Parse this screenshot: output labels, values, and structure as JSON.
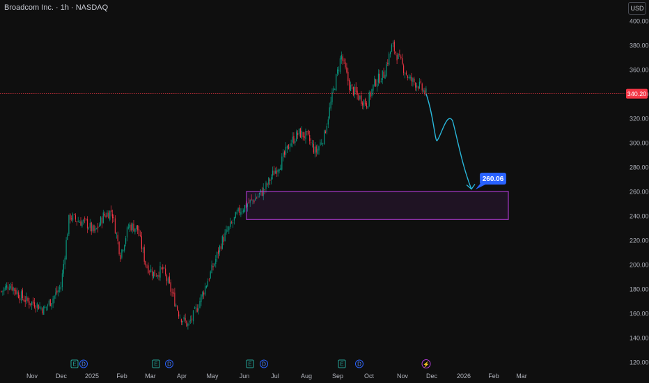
{
  "header": {
    "title": "Broadcom Inc. · 1h · NASDAQ",
    "currency_button": "USD"
  },
  "price_line": {
    "value": 340.2,
    "label": "340.20",
    "color": "#f23645"
  },
  "target": {
    "value": 260.06,
    "label": "260.06",
    "color": "#2962ff"
  },
  "zone": {
    "top": 260.06,
    "bottom": 237,
    "start": "Jun",
    "end": "Mar",
    "color": "#b23bd6"
  },
  "event_markers": [
    {
      "month": "Dec",
      "badges": [
        "E",
        "D"
      ]
    },
    {
      "month": "Mar",
      "badges": [
        "E",
        "D"
      ]
    },
    {
      "month": "Jun",
      "badges": [
        "E",
        "D"
      ]
    },
    {
      "month": "Sep",
      "badges": [
        "E",
        "D"
      ]
    },
    {
      "month": "Nov",
      "badges": [
        "⚡"
      ]
    }
  ],
  "chart_data": {
    "type": "candlestick",
    "y_ticks": [
      120,
      140,
      160,
      180,
      200,
      220,
      240,
      260,
      280,
      300,
      320,
      340,
      360,
      380,
      400
    ],
    "y_tick_labels": [
      "120.00",
      "140.00",
      "160.00",
      "180.00",
      "200.00",
      "220.00",
      "240.00",
      "260.00",
      "280.00",
      "300.00",
      "320.00",
      "340.00",
      "360.00",
      "380.00",
      "400.00"
    ],
    "ylim": [
      114,
      410
    ],
    "x_ticks": [
      "Nov",
      "Dec",
      "2025",
      "Feb",
      "Mar",
      "Apr",
      "May",
      "Jun",
      "Jul",
      "Aug",
      "Sep",
      "Oct",
      "Nov",
      "Dec",
      "2026",
      "Feb",
      "Mar"
    ],
    "colors": {
      "up": "#089981",
      "down": "#f23645",
      "projection": "#29b6d9"
    },
    "price_path": [
      [
        "Nov",
        178
      ],
      [
        "Nov",
        184
      ],
      [
        "Nov",
        176
      ],
      [
        "Nov",
        170
      ],
      [
        "Dec",
        168
      ],
      [
        "Dec",
        163
      ],
      [
        "Dec",
        172
      ],
      [
        "Dec",
        182
      ],
      [
        "Dec",
        240
      ],
      [
        "Dec",
        236
      ],
      [
        "2025",
        234
      ],
      [
        "2025",
        226
      ],
      [
        "2025",
        240
      ],
      [
        "Feb",
        244
      ],
      [
        "Feb",
        208
      ],
      [
        "Feb",
        232
      ],
      [
        "Feb",
        230
      ],
      [
        "Mar",
        200
      ],
      [
        "Mar",
        192
      ],
      [
        "Mar",
        196
      ],
      [
        "Apr",
        178
      ],
      [
        "Apr",
        158
      ],
      [
        "Apr",
        150
      ],
      [
        "Apr",
        164
      ],
      [
        "Apr",
        182
      ],
      [
        "May",
        200
      ],
      [
        "May",
        220
      ],
      [
        "May",
        232
      ],
      [
        "Jun",
        244
      ],
      [
        "Jun",
        250
      ],
      [
        "Jun",
        255
      ],
      [
        "Jul",
        262
      ],
      [
        "Jul",
        275
      ],
      [
        "Jul",
        285
      ],
      [
        "Aug",
        300
      ],
      [
        "Aug",
        308
      ],
      [
        "Aug",
        305
      ],
      [
        "Aug",
        292
      ],
      [
        "Sep",
        306
      ],
      [
        "Sep",
        340
      ],
      [
        "Sep",
        372
      ],
      [
        "Sep",
        346
      ],
      [
        "Oct",
        338
      ],
      [
        "Oct",
        332
      ],
      [
        "Oct",
        350
      ],
      [
        "Oct",
        356
      ],
      [
        "Nov",
        380
      ],
      [
        "Nov",
        366
      ],
      [
        "Nov",
        352
      ],
      [
        "Nov",
        348
      ],
      [
        "Nov",
        340
      ]
    ],
    "projection": [
      [
        "Nov",
        340
      ],
      [
        "Nov",
        322
      ],
      [
        "Dec",
        302
      ],
      [
        "Dec",
        318
      ],
      [
        "Dec",
        292
      ],
      [
        "Dec",
        262
      ]
    ]
  }
}
